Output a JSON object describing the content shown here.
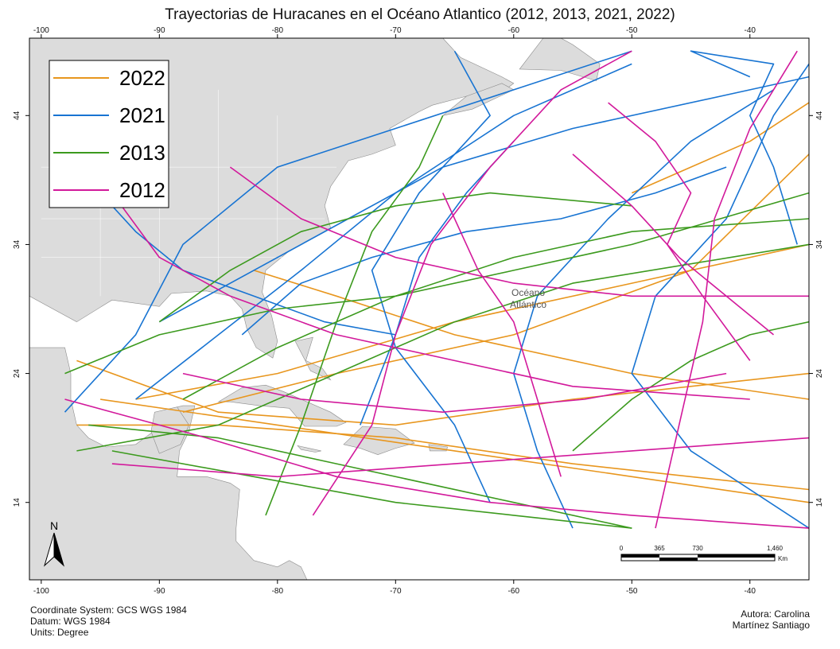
{
  "title": "Trayectorias de Huracanes en el Océano Atlantico (2012, 2013, 2021, 2022)",
  "axes": {
    "lon_ticks": [
      "-100",
      "-90",
      "-80",
      "-70",
      "-60",
      "-50",
      "-40"
    ],
    "lat_ticks": [
      "44",
      "34",
      "24",
      "14"
    ]
  },
  "legend": [
    {
      "year": "2022",
      "color": "#E8961E"
    },
    {
      "year": "2021",
      "color": "#1874D2"
    },
    {
      "year": "2013",
      "color": "#3C9A1E"
    },
    {
      "year": "2012",
      "color": "#D2199B"
    }
  ],
  "ocean_label": {
    "line1": "Océano",
    "line2": "Atlántico"
  },
  "north_arrow": {
    "label": "N"
  },
  "scale_bar": {
    "labels": [
      "0",
      "365",
      "730",
      "1,460"
    ],
    "unit": "Km"
  },
  "footer_left": [
    "Coordinate System: GCS WGS 1984",
    "Datum: WGS 1984",
    "Units: Degree"
  ],
  "footer_right": [
    "Autora: Carolina",
    "Martínez Santiago"
  ],
  "land_color": "#DCDCDC",
  "chart_data": {
    "type": "map",
    "projection": "GCS WGS 1984",
    "xlim": [
      -101,
      -35
    ],
    "ylim": [
      8,
      50
    ],
    "series": [
      {
        "name": "2022",
        "tracks": [
          [
            [
              -97,
              25
            ],
            [
              -85,
              21
            ],
            [
              -70,
              20
            ],
            [
              -55,
              22
            ],
            [
              -35,
              24
            ]
          ],
          [
            [
              -92,
              22
            ],
            [
              -80,
              24
            ],
            [
              -65,
              28
            ],
            [
              -50,
              31
            ],
            [
              -35,
              34
            ]
          ],
          [
            [
              -97,
              20
            ],
            [
              -85,
              20
            ],
            [
              -70,
              19
            ],
            [
              -55,
              17
            ],
            [
              -35,
              15
            ]
          ],
          [
            [
              -88,
              21
            ],
            [
              -75,
              24
            ],
            [
              -60,
              27
            ],
            [
              -45,
              32
            ],
            [
              -35,
              41
            ]
          ],
          [
            [
              -95,
              22
            ],
            [
              -80,
              20
            ],
            [
              -65,
              18
            ],
            [
              -50,
              16
            ],
            [
              -35,
              14
            ]
          ],
          [
            [
              -82,
              32
            ],
            [
              -75,
              30
            ],
            [
              -65,
              27
            ],
            [
              -50,
              24
            ],
            [
              -35,
              22
            ]
          ],
          [
            [
              -50,
              38
            ],
            [
              -45,
              40
            ],
            [
              -40,
              42
            ],
            [
              -35,
              45
            ]
          ]
        ]
      },
      {
        "name": "2021",
        "tracks": [
          [
            [
              -98,
              21
            ],
            [
              -92,
              27
            ],
            [
              -88,
              34
            ],
            [
              -80,
              40
            ],
            [
              -70,
              43
            ],
            [
              -60,
              46
            ],
            [
              -50,
              49
            ]
          ],
          [
            [
              -92,
              22
            ],
            [
              -85,
              27
            ],
            [
              -78,
              32
            ],
            [
              -70,
              38
            ],
            [
              -60,
              44
            ],
            [
              -50,
              48
            ]
          ],
          [
            [
              -90,
              28
            ],
            [
              -82,
              32
            ],
            [
              -74,
              36
            ],
            [
              -66,
              40
            ],
            [
              -55,
              43
            ],
            [
              -40,
              46
            ],
            [
              -35,
              47
            ]
          ],
          [
            [
              -62,
              14
            ],
            [
              -65,
              20
            ],
            [
              -70,
              26
            ],
            [
              -72,
              32
            ],
            [
              -68,
              38
            ],
            [
              -62,
              44
            ],
            [
              -65,
              49
            ]
          ],
          [
            [
              -55,
              12
            ],
            [
              -58,
              18
            ],
            [
              -60,
              24
            ],
            [
              -58,
              30
            ],
            [
              -52,
              36
            ],
            [
              -45,
              42
            ],
            [
              -38,
              46
            ]
          ],
          [
            [
              -35,
              12
            ],
            [
              -45,
              18
            ],
            [
              -50,
              24
            ],
            [
              -48,
              30
            ],
            [
              -42,
              36
            ],
            [
              -38,
              44
            ],
            [
              -35,
              48
            ]
          ],
          [
            [
              -83,
              27
            ],
            [
              -78,
              31
            ],
            [
              -72,
              33
            ],
            [
              -64,
              35
            ],
            [
              -56,
              36
            ],
            [
              -48,
              38
            ],
            [
              -42,
              40
            ]
          ],
          [
            [
              -96,
              39
            ],
            [
              -92,
              35
            ],
            [
              -88,
              32
            ],
            [
              -82,
              30
            ],
            [
              -76,
              28
            ],
            [
              -70,
              27
            ]
          ],
          [
            [
              -40,
              47
            ],
            [
              -45,
              49
            ],
            [
              -38,
              48
            ],
            [
              -40,
              44
            ],
            [
              -38,
              40
            ],
            [
              -36,
              34
            ]
          ],
          [
            [
              -73,
              20
            ],
            [
              -70,
              27
            ],
            [
              -68,
              33
            ],
            [
              -64,
              38
            ],
            [
              -60,
              42
            ]
          ]
        ]
      },
      {
        "name": "2013",
        "tracks": [
          [
            [
              -98,
              24
            ],
            [
              -90,
              27
            ],
            [
              -80,
              29
            ],
            [
              -70,
              30
            ],
            [
              -60,
              32
            ],
            [
              -50,
              34
            ],
            [
              -35,
              38
            ]
          ],
          [
            [
              -96,
              20
            ],
            [
              -85,
              19
            ],
            [
              -75,
              17
            ],
            [
              -60,
              14
            ],
            [
              -50,
              12
            ]
          ],
          [
            [
              -88,
              22
            ],
            [
              -80,
              26
            ],
            [
              -70,
              30
            ],
            [
              -60,
              33
            ],
            [
              -50,
              35
            ],
            [
              -35,
              36
            ]
          ],
          [
            [
              -97,
              18
            ],
            [
              -85,
              20
            ],
            [
              -75,
              24
            ],
            [
              -65,
              28
            ],
            [
              -55,
              31
            ],
            [
              -35,
              34
            ]
          ],
          [
            [
              -81,
              13
            ],
            [
              -78,
              20
            ],
            [
              -75,
              28
            ],
            [
              -72,
              35
            ],
            [
              -68,
              40
            ],
            [
              -66,
              44
            ]
          ],
          [
            [
              -90,
              28
            ],
            [
              -84,
              32
            ],
            [
              -78,
              35
            ],
            [
              -70,
              37
            ],
            [
              -62,
              38
            ],
            [
              -50,
              37
            ]
          ],
          [
            [
              -55,
              18
            ],
            [
              -50,
              22
            ],
            [
              -45,
              25
            ],
            [
              -40,
              27
            ],
            [
              -35,
              28
            ]
          ],
          [
            [
              -94,
              18
            ],
            [
              -82,
              16
            ],
            [
              -70,
              14
            ],
            [
              -60,
              13
            ],
            [
              -50,
              12
            ]
          ]
        ]
      },
      {
        "name": "2012",
        "tracks": [
          [
            [
              -94,
              38
            ],
            [
              -90,
              33
            ],
            [
              -84,
              30
            ],
            [
              -75,
              27
            ],
            [
              -65,
              25
            ],
            [
              -55,
              23
            ],
            [
              -40,
              22
            ]
          ],
          [
            [
              -98,
              22
            ],
            [
              -86,
              19
            ],
            [
              -75,
              16
            ],
            [
              -62,
              14
            ],
            [
              -50,
              13
            ],
            [
              -35,
              12
            ]
          ],
          [
            [
              -84,
              40
            ],
            [
              -78,
              36
            ],
            [
              -70,
              33
            ],
            [
              -60,
              31
            ],
            [
              -50,
              30
            ],
            [
              -35,
              30
            ]
          ],
          [
            [
              -77,
              13
            ],
            [
              -72,
              20
            ],
            [
              -70,
              27
            ],
            [
              -67,
              34
            ],
            [
              -62,
              40
            ],
            [
              -56,
              46
            ],
            [
              -50,
              49
            ]
          ],
          [
            [
              -66,
              38
            ],
            [
              -63,
              32
            ],
            [
              -60,
              28
            ],
            [
              -58,
              22
            ],
            [
              -56,
              16
            ]
          ],
          [
            [
              -48,
              12
            ],
            [
              -46,
              20
            ],
            [
              -44,
              28
            ],
            [
              -43,
              36
            ],
            [
              -40,
              43
            ],
            [
              -36,
              49
            ]
          ],
          [
            [
              -94,
              17
            ],
            [
              -80,
              16
            ],
            [
              -65,
              17
            ],
            [
              -50,
              18
            ],
            [
              -35,
              19
            ]
          ],
          [
            [
              -55,
              41
            ],
            [
              -50,
              37
            ],
            [
              -46,
              33
            ],
            [
              -42,
              30
            ],
            [
              -38,
              27
            ]
          ],
          [
            [
              -88,
              24
            ],
            [
              -78,
              22
            ],
            [
              -66,
              21
            ],
            [
              -54,
              22
            ],
            [
              -42,
              24
            ]
          ],
          [
            [
              -52,
              45
            ],
            [
              -48,
              42
            ],
            [
              -45,
              38
            ],
            [
              -47,
              34
            ],
            [
              -44,
              30
            ],
            [
              -40,
              25
            ]
          ]
        ]
      }
    ]
  }
}
